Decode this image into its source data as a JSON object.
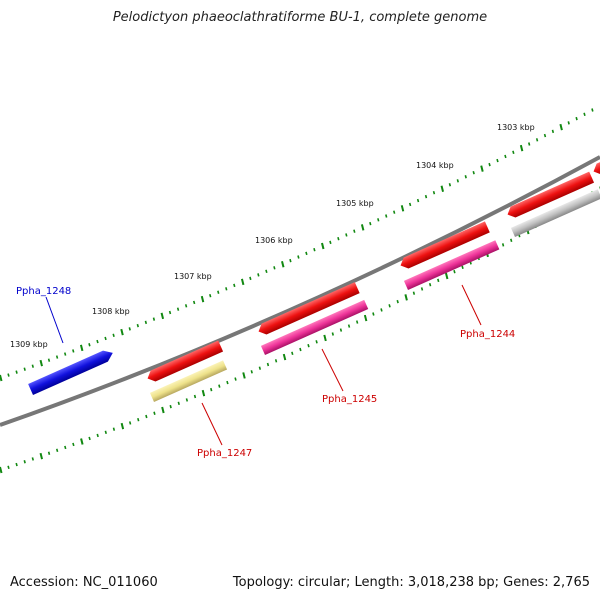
{
  "title": "Pelodictyon phaeoclathratiforme BU-1, complete genome",
  "footer": {
    "accession": "Accession: NC_011060",
    "topology": "Topology: circular; Length: 3,018,238 bp; Genes: 2,765"
  },
  "tick_labels": [
    "1303 kbp",
    "1304 kbp",
    "1305 kbp",
    "1306 kbp",
    "1307 kbp",
    "1308 kbp",
    "1309 kbp"
  ],
  "gene_labels": [
    {
      "name": "Ppha_1248",
      "color": "#0000cc"
    },
    {
      "name": "Ppha_1247",
      "color": "#cc0000"
    },
    {
      "name": "Ppha_1245",
      "color": "#cc0000"
    },
    {
      "name": "Ppha_1244",
      "color": "#cc0000"
    }
  ],
  "colors": {
    "backbone": "#777777",
    "tick": "#118811",
    "cds_red": "#ee1111",
    "gene_blue": "#1111dd",
    "rna_yellow": "#eee28a",
    "rna_pink": "#ee3399",
    "rna_gray": "#c0c0c0"
  }
}
